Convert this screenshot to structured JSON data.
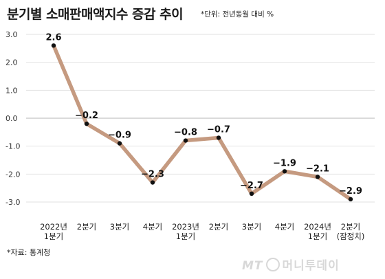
{
  "title": "분기별 소매판매액지수 증감 추이",
  "unit_note": "*단위: 전년동월 대비 %",
  "source_note": "*자료: 통계청",
  "watermark": {
    "mt": "MT",
    "text": "머니투데이"
  },
  "colors": {
    "line": "#c59a80",
    "point": "#111111"
  },
  "chart_data": {
    "type": "line",
    "title": "분기별 소매판매액지수 증감 추이",
    "xlabel": "",
    "ylabel": "",
    "ylim": [
      -3.0,
      3.0
    ],
    "y_ticks": [
      "3.0",
      "2.0",
      "1.0",
      "0.0",
      "-1.0",
      "-2.0",
      "-3.0"
    ],
    "grid": true,
    "categories": [
      [
        "2022년",
        "1분기"
      ],
      [
        "2분기"
      ],
      [
        "3분기"
      ],
      [
        "4분기"
      ],
      [
        "2023년",
        "1분기"
      ],
      [
        "2분기"
      ],
      [
        "3분기"
      ],
      [
        "4분기"
      ],
      [
        "2024년",
        "1분기"
      ],
      [
        "2분기",
        "(잠정치)"
      ]
    ],
    "values": [
      2.6,
      -0.2,
      -0.9,
      -2.3,
      -0.8,
      -0.7,
      -2.7,
      -1.9,
      -2.1,
      -2.9
    ],
    "value_labels": [
      "2.6",
      "−0.2",
      "−0.9",
      "−2.3",
      "−0.8",
      "−0.7",
      "−2.7",
      "−1.9",
      "−2.1",
      "−2.9"
    ]
  }
}
